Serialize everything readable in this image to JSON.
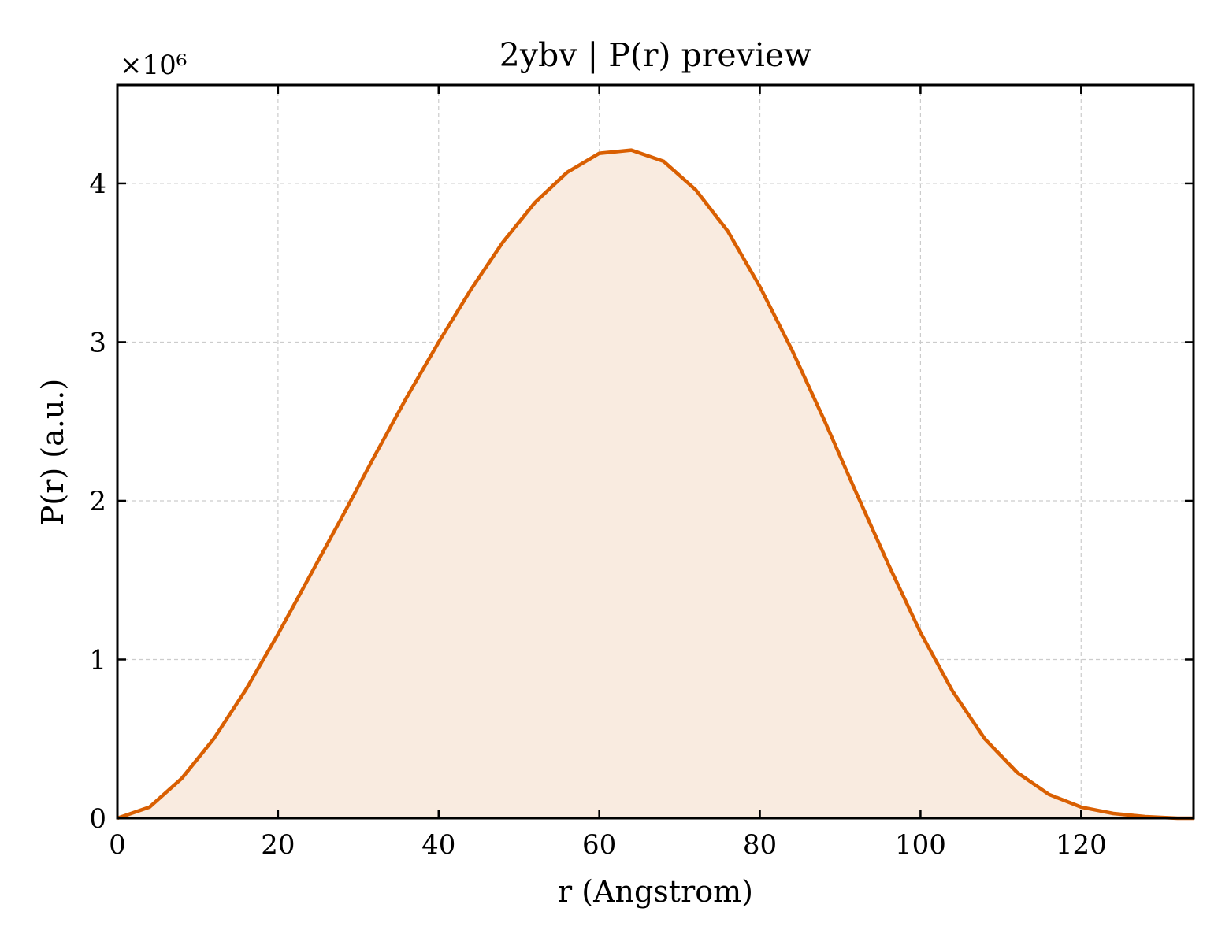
{
  "chart_data": {
    "type": "area",
    "title": "2ybv | P(r) preview",
    "xlabel": "r (Angstrom)",
    "ylabel": "P(r) (a.u.)",
    "y_multiplier_label": "×10⁶",
    "xlim": [
      0,
      134
    ],
    "ylim": [
      0,
      4.62
    ],
    "x_ticks": [
      0,
      20,
      40,
      60,
      80,
      100,
      120
    ],
    "y_ticks": [
      0,
      1,
      2,
      3,
      4
    ],
    "x_tick_labels": [
      "0",
      "20",
      "40",
      "60",
      "80",
      "100",
      "120"
    ],
    "y_tick_labels": [
      "0",
      "1",
      "2",
      "3",
      "4"
    ],
    "grid": true,
    "colors": {
      "line": "#d95f02",
      "fill": "#f9ebe0",
      "grid": "#cccccc"
    },
    "series": [
      {
        "x": [
          0,
          4,
          8,
          12,
          16,
          20,
          24,
          28,
          32,
          36,
          40,
          44,
          48,
          52,
          56,
          60,
          64,
          68,
          72,
          76,
          80,
          84,
          88,
          92,
          96,
          100,
          104,
          108,
          112,
          116,
          120,
          124,
          128,
          132,
          134
        ],
        "y": [
          0.0,
          0.07,
          0.25,
          0.5,
          0.81,
          1.16,
          1.53,
          1.9,
          2.28,
          2.65,
          3.0,
          3.33,
          3.63,
          3.88,
          4.07,
          4.19,
          4.21,
          4.14,
          3.96,
          3.7,
          3.35,
          2.95,
          2.51,
          2.05,
          1.6,
          1.17,
          0.8,
          0.5,
          0.29,
          0.15,
          0.07,
          0.03,
          0.01,
          0.0,
          0.0
        ]
      }
    ]
  }
}
